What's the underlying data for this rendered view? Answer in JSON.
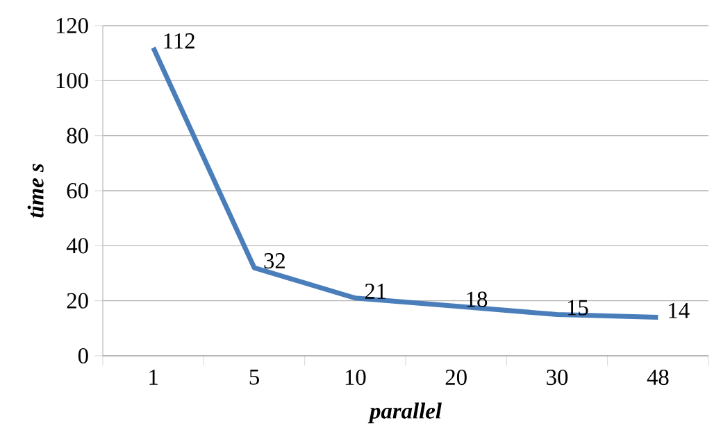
{
  "chart_data": {
    "type": "line",
    "xlabel": "parallel",
    "ylabel": "time s",
    "categories": [
      "1",
      "5",
      "10",
      "20",
      "30",
      "48"
    ],
    "values": [
      112,
      32,
      21,
      18,
      15,
      14
    ],
    "color": "#4a7ebb",
    "ylim": [
      0,
      120
    ],
    "yticks": [
      0,
      20,
      40,
      60,
      80,
      100,
      120
    ],
    "grid": "y",
    "data_labels": true,
    "marker": "none",
    "line_style": "solid"
  }
}
